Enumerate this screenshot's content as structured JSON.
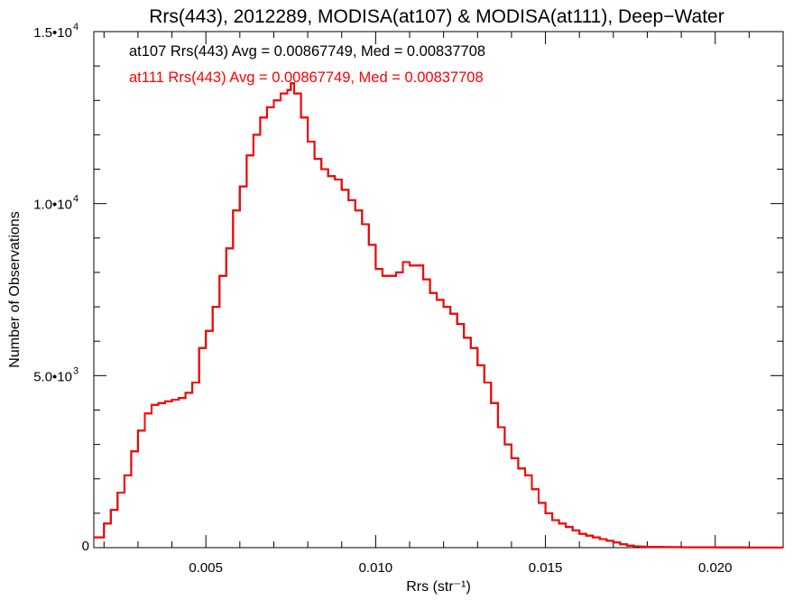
{
  "chart_data": {
    "type": "line",
    "title": "Rrs(443), 2012289, MODISA(at107) & MODISA(at111), Deep−Water",
    "xlabel": "Rrs (str⁻¹)",
    "ylabel": "Number of Observations",
    "xlim": [
      0.0017,
      0.022
    ],
    "ylim": [
      0,
      15000
    ],
    "grid": false,
    "step": true,
    "x_ticks": [
      {
        "value": 0.005,
        "label": "0.005"
      },
      {
        "value": 0.01,
        "label": "0.010"
      },
      {
        "value": 0.015,
        "label": "0.015"
      },
      {
        "value": 0.02,
        "label": "0.020"
      }
    ],
    "y_ticks": [
      {
        "value": 0,
        "mant": "0",
        "exp": ""
      },
      {
        "value": 5000,
        "mant": "5.0•10",
        "exp": "3"
      },
      {
        "value": 10000,
        "mant": "1.0•10",
        "exp": "4"
      },
      {
        "value": 15000,
        "mant": "1.5•10",
        "exp": "4"
      }
    ],
    "annotations": [
      {
        "text": "at107 Rrs(443) Avg = 0.00867749, Med = 0.00837708",
        "color": "#000000"
      },
      {
        "text": "at111 Rrs(443) Avg = 0.00867749, Med = 0.00837708",
        "color": "#ff0000"
      }
    ],
    "series": [
      {
        "name": "at107",
        "color": "#000000",
        "x": [
          0.0017,
          0.002,
          0.0022,
          0.0024,
          0.0026,
          0.0028,
          0.003,
          0.0032,
          0.0034,
          0.0036,
          0.0038,
          0.004,
          0.0042,
          0.0044,
          0.0046,
          0.0048,
          0.005,
          0.0052,
          0.0054,
          0.0056,
          0.0058,
          0.006,
          0.0062,
          0.0064,
          0.0066,
          0.0068,
          0.007,
          0.0072,
          0.0074,
          0.0075,
          0.0076,
          0.0078,
          0.008,
          0.0082,
          0.0084,
          0.0086,
          0.0088,
          0.009,
          0.0092,
          0.0094,
          0.0096,
          0.0098,
          0.01,
          0.0102,
          0.0104,
          0.0106,
          0.0108,
          0.011,
          0.0112,
          0.0114,
          0.0116,
          0.0118,
          0.012,
          0.0122,
          0.0124,
          0.0126,
          0.0128,
          0.013,
          0.0132,
          0.0134,
          0.0136,
          0.0138,
          0.014,
          0.0142,
          0.0144,
          0.0146,
          0.0148,
          0.015,
          0.0152,
          0.0154,
          0.0156,
          0.0158,
          0.016,
          0.0162,
          0.0164,
          0.0166,
          0.0168,
          0.017,
          0.0172,
          0.0174,
          0.0176,
          0.0178,
          0.018,
          0.0185,
          0.019,
          0.02,
          0.021,
          0.022
        ],
        "y": [
          300,
          700,
          1100,
          1600,
          2100,
          2800,
          3400,
          3900,
          4150,
          4200,
          4250,
          4300,
          4350,
          4500,
          4800,
          5800,
          6300,
          7000,
          7900,
          8700,
          9800,
          10500,
          11400,
          12000,
          12500,
          12800,
          13000,
          13200,
          13300,
          13500,
          13200,
          12500,
          11800,
          11300,
          11000,
          10800,
          10700,
          10400,
          10100,
          9800,
          9400,
          8800,
          8100,
          7900,
          7900,
          8000,
          8300,
          8200,
          8200,
          7800,
          7400,
          7200,
          7000,
          6800,
          6500,
          6100,
          5800,
          5300,
          4800,
          4200,
          3500,
          3000,
          2600,
          2300,
          2100,
          1700,
          1300,
          1000,
          800,
          700,
          600,
          500,
          400,
          350,
          300,
          250,
          200,
          150,
          100,
          60,
          40,
          30,
          20,
          15,
          10,
          5,
          3,
          2
        ]
      },
      {
        "name": "at111",
        "color": "#ff0000",
        "x": [
          0.0017,
          0.002,
          0.0022,
          0.0024,
          0.0026,
          0.0028,
          0.003,
          0.0032,
          0.0034,
          0.0036,
          0.0038,
          0.004,
          0.0042,
          0.0044,
          0.0046,
          0.0048,
          0.005,
          0.0052,
          0.0054,
          0.0056,
          0.0058,
          0.006,
          0.0062,
          0.0064,
          0.0066,
          0.0068,
          0.007,
          0.0072,
          0.0074,
          0.0075,
          0.0076,
          0.0078,
          0.008,
          0.0082,
          0.0084,
          0.0086,
          0.0088,
          0.009,
          0.0092,
          0.0094,
          0.0096,
          0.0098,
          0.01,
          0.0102,
          0.0104,
          0.0106,
          0.0108,
          0.011,
          0.0112,
          0.0114,
          0.0116,
          0.0118,
          0.012,
          0.0122,
          0.0124,
          0.0126,
          0.0128,
          0.013,
          0.0132,
          0.0134,
          0.0136,
          0.0138,
          0.014,
          0.0142,
          0.0144,
          0.0146,
          0.0148,
          0.015,
          0.0152,
          0.0154,
          0.0156,
          0.0158,
          0.016,
          0.0162,
          0.0164,
          0.0166,
          0.0168,
          0.017,
          0.0172,
          0.0174,
          0.0176,
          0.0178,
          0.018,
          0.0185,
          0.019,
          0.02,
          0.021,
          0.022
        ],
        "y": [
          300,
          700,
          1100,
          1600,
          2100,
          2800,
          3400,
          3900,
          4150,
          4200,
          4250,
          4300,
          4350,
          4500,
          4800,
          5800,
          6300,
          7000,
          7900,
          8700,
          9800,
          10500,
          11400,
          12000,
          12500,
          12800,
          13000,
          13200,
          13300,
          13500,
          13200,
          12500,
          11800,
          11300,
          11000,
          10800,
          10700,
          10400,
          10100,
          9800,
          9400,
          8800,
          8100,
          7900,
          7900,
          8000,
          8300,
          8200,
          8200,
          7800,
          7400,
          7200,
          7000,
          6800,
          6500,
          6100,
          5800,
          5300,
          4800,
          4200,
          3500,
          3000,
          2600,
          2300,
          2100,
          1700,
          1300,
          1000,
          800,
          700,
          600,
          500,
          400,
          350,
          300,
          250,
          200,
          150,
          100,
          60,
          40,
          30,
          20,
          15,
          10,
          5,
          3,
          2
        ]
      }
    ]
  }
}
